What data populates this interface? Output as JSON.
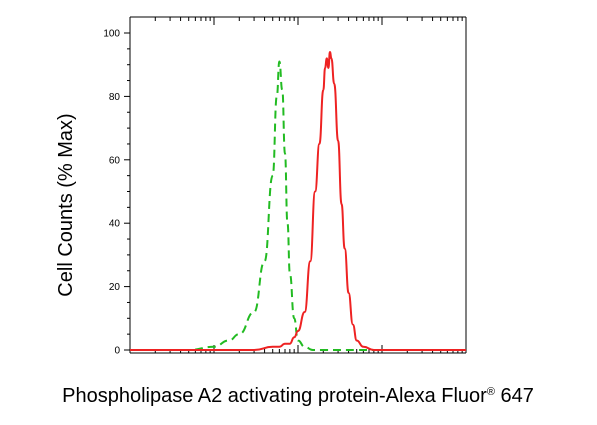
{
  "chart_data": {
    "type": "line",
    "title": "",
    "xlabel": "Phospholipase A2 activating protein-Alexa Fluor",
    "xlabel_superscript": "®",
    "xlabel_suffix": " 647",
    "ylabel": "Cell Counts (% Max)",
    "x_scale": "log",
    "xlim": [
      10,
      100000
    ],
    "ylim": [
      0,
      100
    ],
    "yticks": [
      0,
      20,
      40,
      60,
      80,
      100
    ],
    "ytick_labels": [
      "0",
      "20",
      "40",
      "60",
      "80",
      "100"
    ],
    "grid": false,
    "series": [
      {
        "color": "#22bb22",
        "style": "dashed",
        "x": [
          10,
          50,
          100,
          150,
          200,
          300,
          400,
          500,
          560,
          600,
          650,
          700,
          750,
          800,
          900,
          1000,
          1200,
          1500,
          2000,
          5000,
          100000
        ],
        "y": [
          0,
          0,
          1,
          3,
          5,
          12,
          28,
          55,
          80,
          91,
          82,
          62,
          40,
          24,
          10,
          3,
          1,
          0,
          0,
          0,
          0
        ]
      },
      {
        "color": "#ee2222",
        "style": "solid",
        "x": [
          10,
          300,
          500,
          600,
          700,
          800,
          900,
          1000,
          1200,
          1400,
          1600,
          1800,
          2000,
          2100,
          2200,
          2300,
          2400,
          2500,
          2700,
          3000,
          3300,
          3600,
          4000,
          4500,
          5000,
          6000,
          8000,
          100000
        ],
        "y": [
          0,
          0,
          1,
          1,
          2,
          2,
          4,
          6,
          12,
          28,
          50,
          65,
          82,
          89,
          92,
          89,
          94,
          92,
          84,
          66,
          46,
          32,
          18,
          8,
          3,
          1,
          0,
          0
        ]
      }
    ]
  }
}
